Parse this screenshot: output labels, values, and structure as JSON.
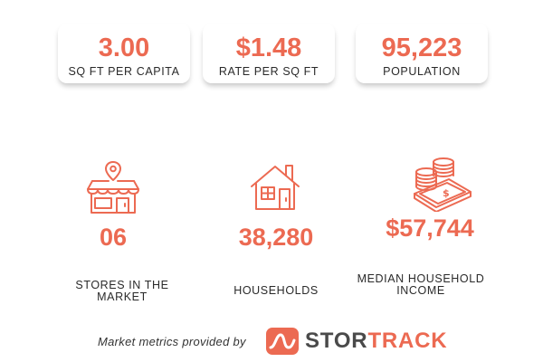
{
  "metrics": [
    {
      "value": "3.00",
      "label": "SQ FT PER CAPITA"
    },
    {
      "value": "$1.48",
      "label": "RATE PER SQ FT"
    },
    {
      "value": "95,223",
      "label": "POPULATION"
    }
  ],
  "stats": [
    {
      "icon": "store-location-icon",
      "value": "06",
      "label_line1": "STORES IN THE",
      "label_line2": "MARKET"
    },
    {
      "icon": "house-icon",
      "value": "38,280",
      "label_line1": "HOUSEHOLDS",
      "label_line2": ""
    },
    {
      "icon": "coins-money-icon",
      "value": "$57,744",
      "label_line1": "MEDIAN HOUSEHOLD",
      "label_line2": "INCOME"
    }
  ],
  "footer": {
    "credit": "Market metrics provided by",
    "brand_part1": "STOR",
    "brand_part2": "TRACK"
  },
  "colors": {
    "accent": "#ec6a52",
    "text": "#2a2a2a",
    "brand_gray": "#4a4a4a"
  }
}
